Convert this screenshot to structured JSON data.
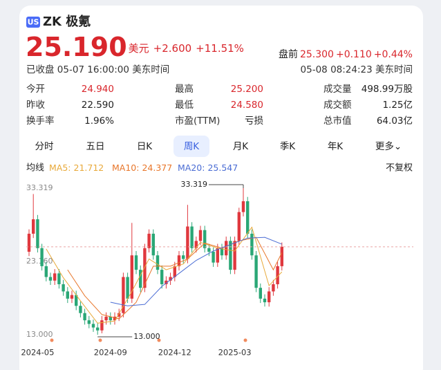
{
  "header": {
    "badge": "US",
    "name": "ZK 极氪",
    "price": "25.190",
    "currency": "美元",
    "change": "+2.600",
    "change_pct": "+11.51%",
    "premarket_label": "盘前",
    "premarket_price": "25.300",
    "premarket_change": "+0.110",
    "premarket_pct": "+0.44%",
    "status": "已收盘 05-07 16:00:00 美东时间",
    "premarket_time": "05-08 08:24:23 美东时间"
  },
  "stats": [
    [
      {
        "label": "今开",
        "value": "24.940",
        "color": "#d9262c"
      },
      {
        "label": "最高",
        "value": "25.200",
        "color": "#d9262c"
      },
      {
        "label": "成交量",
        "value": "498.99万股",
        "color": "#222"
      }
    ],
    [
      {
        "label": "昨收",
        "value": "22.590",
        "color": "#222"
      },
      {
        "label": "最低",
        "value": "24.580",
        "color": "#d9262c"
      },
      {
        "label": "成交额",
        "value": "1.25亿",
        "color": "#222"
      }
    ],
    [
      {
        "label": "换手率",
        "value": "1.96%",
        "color": "#222"
      },
      {
        "label": "市盈(TTM)",
        "value": "亏损",
        "color": "#222"
      },
      {
        "label": "总市值",
        "value": "64.03亿",
        "color": "#222"
      }
    ]
  ],
  "tabs": [
    {
      "label": "分时",
      "active": false
    },
    {
      "label": "五日",
      "active": false
    },
    {
      "label": "日K",
      "active": false
    },
    {
      "label": "周K",
      "active": true
    },
    {
      "label": "月K",
      "active": false
    },
    {
      "label": "季K",
      "active": false
    },
    {
      "label": "年K",
      "active": false
    },
    {
      "label": "更多⌄",
      "active": false
    }
  ],
  "ma_label": "均线",
  "adjust": "不复权",
  "chart_data": {
    "type": "candlestick",
    "up_color": "#e0383e",
    "down_color": "#2aa776",
    "categories": [
      null,
      null,
      "2024-05",
      null,
      null,
      null,
      null,
      null,
      null,
      null,
      null,
      null,
      null,
      null,
      null,
      null,
      null,
      null,
      null,
      "2024-09",
      null,
      null,
      null,
      null,
      null,
      null,
      null,
      null,
      null,
      null,
      null,
      null,
      null,
      null,
      "2024-12",
      null,
      null,
      null,
      null,
      null,
      null,
      null,
      null,
      null,
      null,
      null,
      null,
      null,
      "2025-03",
      null,
      null,
      null,
      null,
      null,
      null,
      null,
      null,
      null,
      null,
      null
    ],
    "open": [
      24.5,
      27,
      29,
      25,
      22.5,
      21,
      20.5,
      21.5,
      20,
      19,
      18,
      18.5,
      17,
      16,
      15,
      14.5,
      14,
      13.6,
      15,
      15.5,
      15,
      15.5,
      16,
      21,
      18,
      24,
      22,
      19.5,
      25,
      27,
      24,
      22,
      20,
      20.5,
      21,
      22.5,
      24,
      23.5,
      28,
      25,
      26,
      27.5,
      25,
      24.5,
      23,
      25,
      24,
      26,
      22,
      26,
      30,
      31.5,
      27,
      24,
      19.5,
      18,
      17.5,
      19,
      20,
      22.5
    ],
    "high": [
      27.6,
      32.5,
      29.6,
      25.6,
      23.1,
      21.6,
      22.1,
      22.1,
      20.6,
      19.6,
      19.1,
      19.1,
      17.6,
      16.6,
      15.6,
      15.1,
      14.6,
      15.6,
      16.1,
      16.1,
      16.1,
      16.6,
      21.6,
      21.6,
      28.5,
      24.6,
      22.6,
      25.6,
      27.6,
      27.6,
      24.6,
      22.6,
      21.1,
      21.6,
      23.1,
      24.6,
      24.6,
      31,
      28.6,
      26.6,
      28.1,
      28.1,
      25.6,
      25.1,
      25.6,
      25.6,
      26.6,
      26.6,
      26.6,
      30.6,
      33.319,
      32.1,
      27.6,
      24.6,
      20.1,
      18.6,
      19.6,
      20.6,
      23.1,
      25.79
    ],
    "low": [
      23.9,
      26.4,
      24.4,
      21.9,
      20.4,
      19.9,
      19.9,
      19.4,
      18.4,
      17.4,
      17.4,
      16.4,
      15.4,
      14.4,
      13.9,
      13.4,
      13.0,
      13.2,
      14.4,
      14.4,
      14.4,
      14.9,
      15.4,
      17.4,
      17.4,
      21.4,
      18.9,
      18.9,
      24.4,
      23.4,
      21.4,
      19.4,
      19.4,
      19.9,
      20.4,
      21.9,
      22.9,
      22.9,
      24.4,
      24.4,
      25.4,
      24.4,
      23.9,
      22.4,
      22.4,
      23.4,
      23.4,
      21.4,
      21.4,
      25.4,
      29.4,
      26.4,
      23.4,
      18.9,
      17.4,
      16.9,
      16.9,
      18.4,
      19.4,
      21.9
    ],
    "close": [
      27,
      29,
      25,
      22.5,
      21,
      20.5,
      21.5,
      20,
      19,
      18,
      18.5,
      17,
      16,
      15,
      14.5,
      14,
      13.6,
      15,
      15.5,
      15,
      15.5,
      16,
      21,
      18,
      24,
      22,
      19.5,
      25,
      27,
      24,
      22,
      20,
      20.5,
      21,
      22.5,
      24,
      23.5,
      28,
      25,
      26,
      27.5,
      25,
      24.5,
      23,
      25,
      24,
      26,
      22,
      26,
      30,
      31.5,
      27,
      24,
      19.5,
      18,
      17.5,
      19,
      20,
      22.5,
      25.19
    ],
    "series": [
      {
        "name": "MA5:",
        "color": "#e8a93a",
        "x": [
          4,
          8,
          12,
          16,
          20,
          24,
          28,
          32,
          36,
          40,
          44,
          48,
          52,
          56,
          59
        ],
        "values": [
          24.9,
          20.9,
          17.7,
          14.6,
          14.9,
          19,
          23.5,
          22,
          22.8,
          25.8,
          25,
          24.6,
          27.9,
          19.8,
          21.712
        ]
      },
      {
        "name": "MA10:",
        "color": "#e8762a",
        "x": [
          9,
          13,
          17,
          21,
          25,
          29,
          33,
          37,
          41,
          45,
          49,
          53,
          57,
          59
        ],
        "values": [
          22,
          18.4,
          15.8,
          15.2,
          17.5,
          22.5,
          22.5,
          23.5,
          25.7,
          25,
          26,
          26.5,
          22,
          24.377
        ]
      },
      {
        "name": "MA20:",
        "color": "#4a6cd4",
        "x": [
          19,
          23,
          27,
          31,
          35,
          39,
          43,
          47,
          51,
          55,
          59
        ],
        "values": [
          17.5,
          17,
          17.2,
          19.7,
          21.5,
          23.3,
          24.6,
          25.5,
          26.4,
          26.5,
          25.547
        ]
      }
    ],
    "ylim": [
      13.0,
      33.319
    ],
    "yticks": [
      33.319,
      {
        "value": 23.16,
        "label": "23.160"
      },
      {
        "value": 13.0,
        "label": "13.000"
      }
    ],
    "max_label": "33.319",
    "min_label": "13.000"
  }
}
